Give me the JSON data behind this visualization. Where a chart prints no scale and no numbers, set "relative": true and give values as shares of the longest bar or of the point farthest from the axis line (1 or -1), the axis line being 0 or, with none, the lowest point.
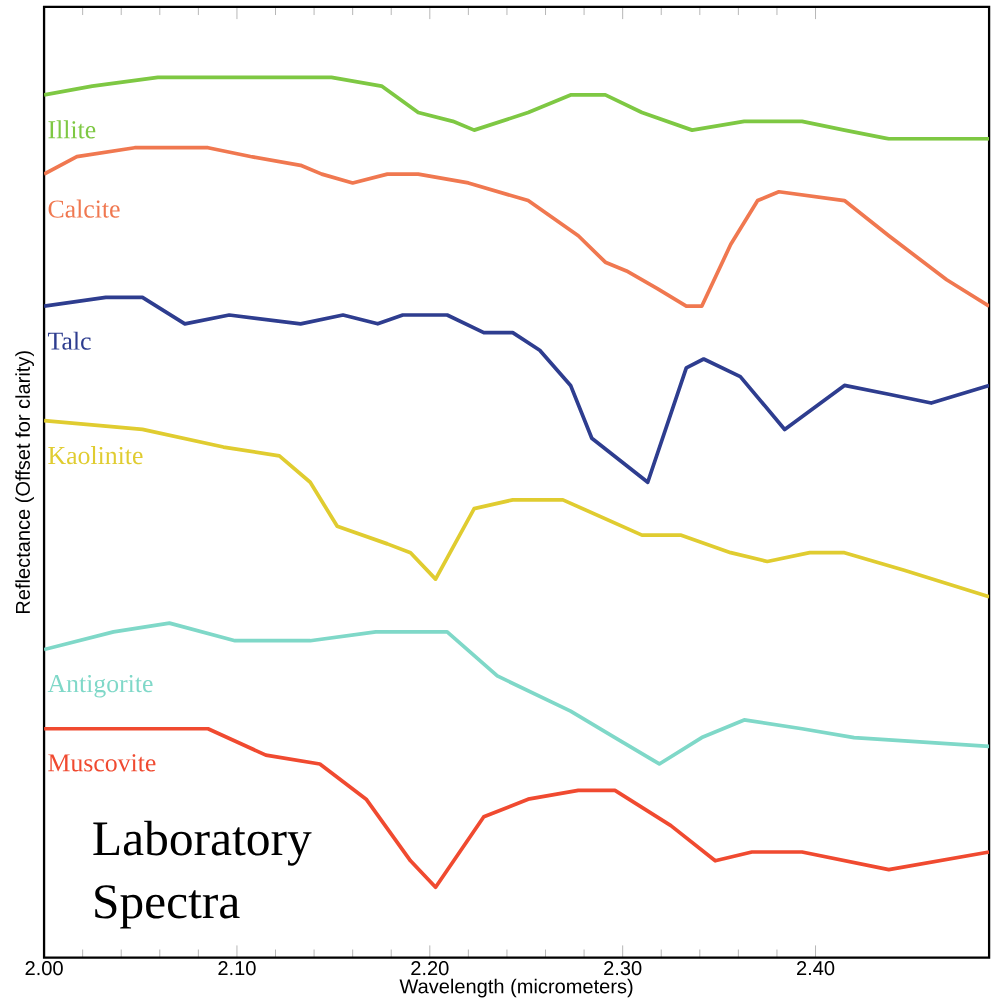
{
  "chart_data": {
    "type": "line",
    "relative": true,
    "xlabel": "Wavelength (micrometers)",
    "ylabel": "Reflectance (Offset for clarity)",
    "annotations": [
      "Laboratory Spectra"
    ],
    "xlim": [
      2.0,
      2.49
    ],
    "xticks": [
      {
        "value": 2.0,
        "label": "2.00"
      },
      {
        "value": 2.1,
        "label": "2.10"
      },
      {
        "value": 2.2,
        "label": "2.20"
      },
      {
        "value": 2.3,
        "label": "2.30"
      },
      {
        "value": 2.4,
        "label": "2.40"
      }
    ],
    "grid": false,
    "legend": false,
    "marker": "none",
    "line_style": "solid",
    "series": [
      {
        "name": "Illite",
        "color": "#7ec843",
        "x": [
          2.0,
          2.025,
          2.059,
          2.099,
          2.149,
          2.175,
          2.194,
          2.212,
          2.223,
          2.251,
          2.273,
          2.291,
          2.31,
          2.336,
          2.363,
          2.393,
          2.415,
          2.438,
          2.49
        ],
        "values": [
          0.98,
          0.99,
          1.0,
          1.0,
          1.0,
          0.99,
          0.96,
          0.95,
          0.94,
          0.96,
          0.98,
          0.98,
          0.96,
          0.94,
          0.95,
          0.95,
          0.94,
          0.93,
          0.93
        ]
      },
      {
        "name": "Calcite",
        "color": "#f07850",
        "x": [
          2.0,
          2.017,
          2.047,
          2.085,
          2.107,
          2.133,
          2.144,
          2.16,
          2.178,
          2.194,
          2.22,
          2.251,
          2.277,
          2.291,
          2.302,
          2.318,
          2.333,
          2.341,
          2.356,
          2.37,
          2.381,
          2.415,
          2.438,
          2.468,
          2.49
        ],
        "values": [
          0.89,
          0.91,
          0.92,
          0.92,
          0.91,
          0.9,
          0.89,
          0.88,
          0.89,
          0.89,
          0.88,
          0.86,
          0.82,
          0.79,
          0.78,
          0.76,
          0.74,
          0.74,
          0.81,
          0.86,
          0.87,
          0.86,
          0.82,
          0.77,
          0.74
        ]
      },
      {
        "name": "Talc",
        "color": "#2e3d8f",
        "x": [
          2.0,
          2.032,
          2.051,
          2.073,
          2.096,
          2.133,
          2.155,
          2.173,
          2.186,
          2.209,
          2.228,
          2.243,
          2.257,
          2.273,
          2.284,
          2.313,
          2.333,
          2.342,
          2.361,
          2.384,
          2.415,
          2.438,
          2.46,
          2.49
        ],
        "values": [
          0.74,
          0.75,
          0.75,
          0.72,
          0.73,
          0.72,
          0.73,
          0.72,
          0.73,
          0.73,
          0.71,
          0.71,
          0.69,
          0.65,
          0.59,
          0.54,
          0.67,
          0.68,
          0.66,
          0.6,
          0.65,
          0.64,
          0.63,
          0.65
        ]
      },
      {
        "name": "Kaolinite",
        "color": "#e0cc30",
        "x": [
          2.0,
          2.051,
          2.093,
          2.122,
          2.138,
          2.152,
          2.178,
          2.19,
          2.203,
          2.223,
          2.243,
          2.269,
          2.31,
          2.33,
          2.356,
          2.375,
          2.397,
          2.415,
          2.446,
          2.49
        ],
        "values": [
          0.61,
          0.6,
          0.58,
          0.57,
          0.54,
          0.49,
          0.47,
          0.46,
          0.43,
          0.51,
          0.52,
          0.52,
          0.48,
          0.48,
          0.46,
          0.45,
          0.46,
          0.46,
          0.44,
          0.41
        ]
      },
      {
        "name": "Antigorite",
        "color": "#7fd8c8",
        "x": [
          2.0,
          2.036,
          2.065,
          2.099,
          2.138,
          2.172,
          2.209,
          2.235,
          2.273,
          2.296,
          2.319,
          2.341,
          2.363,
          2.393,
          2.42,
          2.49
        ],
        "values": [
          0.35,
          0.37,
          0.38,
          0.36,
          0.36,
          0.37,
          0.37,
          0.32,
          0.28,
          0.25,
          0.22,
          0.25,
          0.27,
          0.26,
          0.25,
          0.24
        ]
      },
      {
        "name": "Muscovite",
        "color": "#f04a30",
        "x": [
          2.0,
          2.059,
          2.085,
          2.115,
          2.143,
          2.167,
          2.19,
          2.203,
          2.228,
          2.251,
          2.277,
          2.296,
          2.325,
          2.348,
          2.367,
          2.393,
          2.438,
          2.49
        ],
        "values": [
          0.26,
          0.26,
          0.26,
          0.23,
          0.22,
          0.18,
          0.11,
          0.08,
          0.16,
          0.18,
          0.19,
          0.19,
          0.15,
          0.11,
          0.12,
          0.12,
          0.1,
          0.12
        ]
      }
    ]
  }
}
